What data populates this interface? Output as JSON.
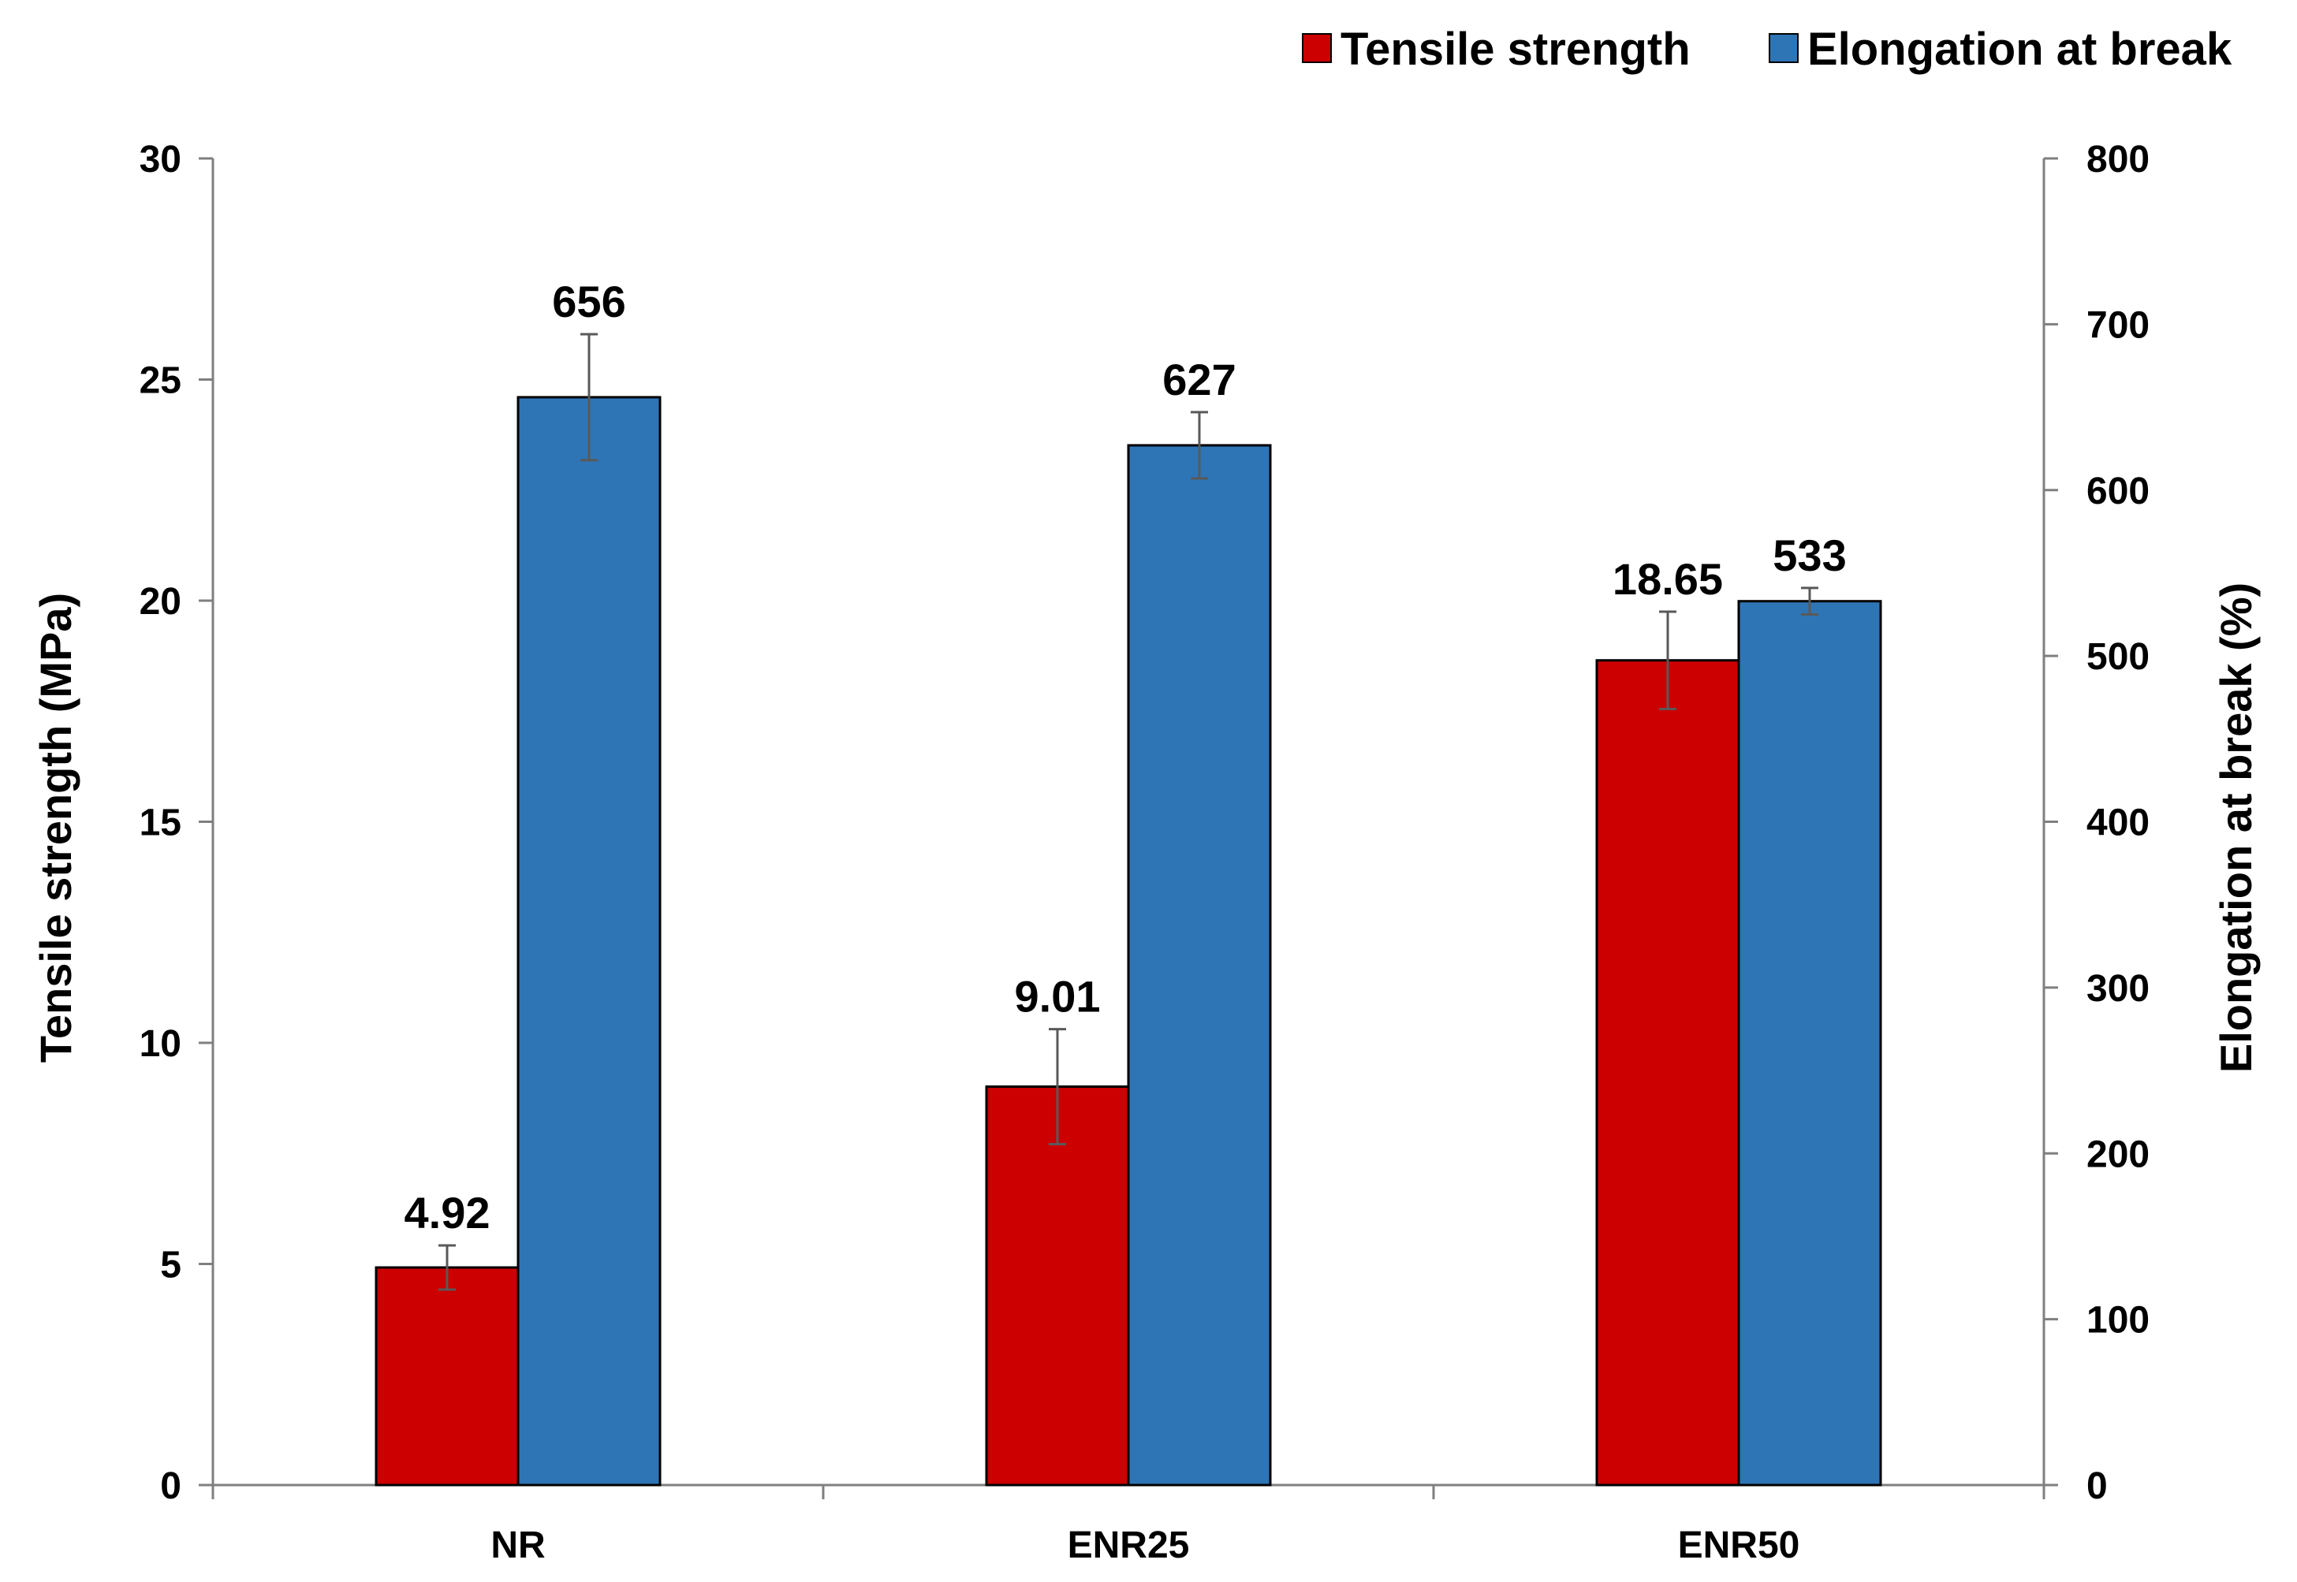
{
  "chart_data": {
    "type": "bar",
    "title": "",
    "categories": [
      "NR",
      "ENR25",
      "ENR50"
    ],
    "series": [
      {
        "name": "Tensile strength",
        "axis": "left",
        "color": "#CC0000",
        "values": [
          4.92,
          9.01,
          18.65
        ],
        "error": [
          0.5,
          1.3,
          1.1
        ],
        "labels": [
          "4.92",
          "9.01",
          "18.65"
        ]
      },
      {
        "name": "Elongation at break",
        "axis": "right",
        "color": "#2E75B6",
        "values": [
          656,
          627,
          533
        ],
        "error": [
          38,
          20,
          8
        ],
        "labels": [
          "656",
          "627",
          "533"
        ]
      }
    ],
    "ylabel": "Tensile strength (MPa)",
    "y2label": "Elongation at break (%)",
    "xlabel": "",
    "ylim": [
      0,
      30
    ],
    "y2lim": [
      0,
      800
    ],
    "yticks": [
      "0",
      "5",
      "10",
      "15",
      "20",
      "25",
      "30"
    ],
    "y2ticks": [
      "0",
      "100",
      "200",
      "300",
      "400",
      "500",
      "600",
      "700",
      "800"
    ],
    "grid": false,
    "legend_position": "top-right"
  }
}
